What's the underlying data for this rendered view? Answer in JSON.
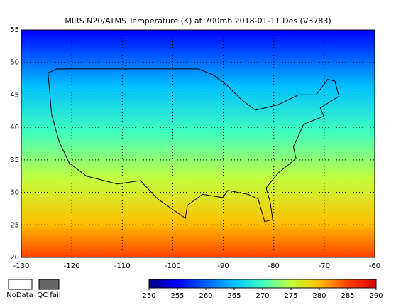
{
  "title": "MIRS N20/ATMS Temperature (K) at 700mb 2018-01-11 Des  (V3783)",
  "map": {
    "xlim": [
      -130,
      -60
    ],
    "xticks": [
      -130,
      -120,
      -110,
      -100,
      -90,
      -80,
      -70,
      -60
    ],
    "ylim": [
      20,
      55
    ],
    "yticks": [
      20,
      25,
      30,
      35,
      40,
      45,
      50,
      55
    ],
    "grid": true
  },
  "colorbar": {
    "range": [
      250,
      290
    ],
    "ticks": [
      250,
      255,
      260,
      265,
      270,
      275,
      280,
      285,
      290
    ],
    "colors": [
      "#00007f",
      "#0000ff",
      "#0060ff",
      "#00c0ff",
      "#40ffc0",
      "#c0ff40",
      "#ffc000",
      "#ff4000",
      "#e00000"
    ]
  },
  "legend": {
    "nodata": "NoData",
    "qcfail": "QC fail"
  }
}
